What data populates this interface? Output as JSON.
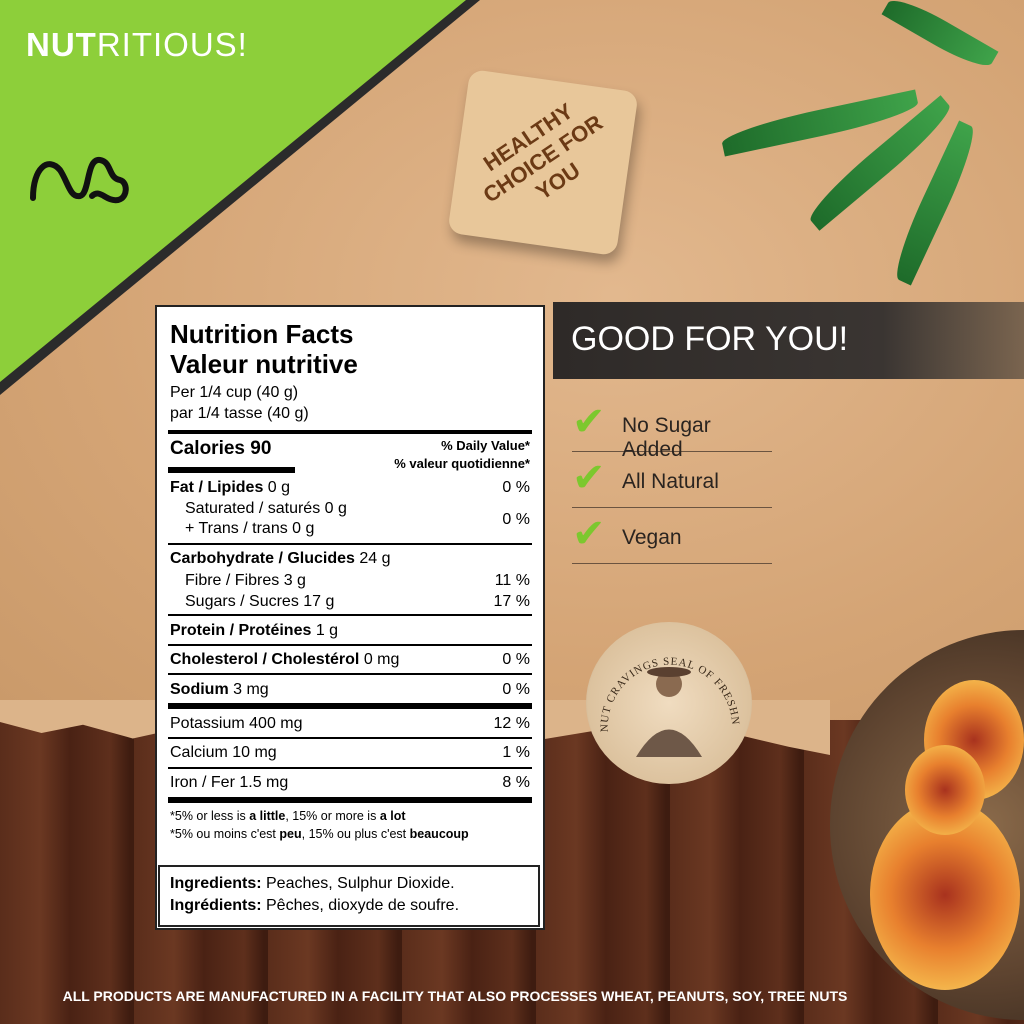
{
  "banner": {
    "brand_bold": "NUT",
    "brand_rest": "RITIOUS!",
    "logo": "nc-logo"
  },
  "tag": {
    "text": "HEALTHY CHOICE FOR YOU"
  },
  "nutrition": {
    "title_en": "Nutrition Facts",
    "title_fr": "Valeur nutritive",
    "serving_en": "Per 1/4 cup (40 g)",
    "serving_fr": "par 1/4 tasse (40 g)",
    "calories": "Calories 90",
    "dv_en": "% Daily Value*",
    "dv_fr": "% valeur quotidienne*",
    "fat_label": "Fat / Lipides",
    "fat_amt": " 0 g",
    "fat_dv": "0 %",
    "sat": "Saturated / saturés 0 g",
    "trans": "+ Trans / trans 0 g",
    "sat_dv": "0 %",
    "carb_label": "Carbohydrate / Glucides",
    "carb_amt": " 24 g",
    "fibre": "Fibre / Fibres 3 g",
    "fibre_dv": "11 %",
    "sugars": "Sugars / Sucres 17 g",
    "sugars_dv": "17 %",
    "protein_label": "Protein / Protéines",
    "protein_amt": " 1 g",
    "chol_label": "Cholesterol / Cholestérol",
    "chol_amt": " 0 mg",
    "chol_dv": "0 %",
    "sodium_label": "Sodium",
    "sodium_amt": " 3 mg",
    "sodium_dv": "0 %",
    "potassium": "Potassium 400 mg",
    "potassium_dv": "12 %",
    "calcium": "Calcium 10 mg",
    "calcium_dv": "1 %",
    "iron": "Iron / Fer 1.5 mg",
    "iron_dv": "8 %",
    "foot_en_a": "*5% or less is ",
    "foot_en_b": "a little",
    "foot_en_c": ", 15% or more is ",
    "foot_en_d": "a lot",
    "foot_fr_a": "*5% ou moins c'est ",
    "foot_fr_b": "peu",
    "foot_fr_c": ", 15% ou plus c'est ",
    "foot_fr_d": "beaucoup"
  },
  "ingredients": {
    "label_en": "Ingredients:",
    "text_en": " Peaches, Sulphur Dioxide.",
    "label_fr": "Ingrédients:",
    "text_fr": " Pêches, dioxyde de soufre."
  },
  "good": {
    "title": "GOOD FOR YOU!",
    "claims": [
      "No Sugar Added",
      "All Natural",
      "Vegan"
    ],
    "accent": "#7cc82e"
  },
  "seal": {
    "text": "NUT CRAVINGS SEAL OF FRESHNESS"
  },
  "footer": "ALL PRODUCTS ARE MANUFACTURED IN A FACILITY THAT ALSO PROCESSES WHEAT, PEANUTS, SOY, TREE NUTS"
}
